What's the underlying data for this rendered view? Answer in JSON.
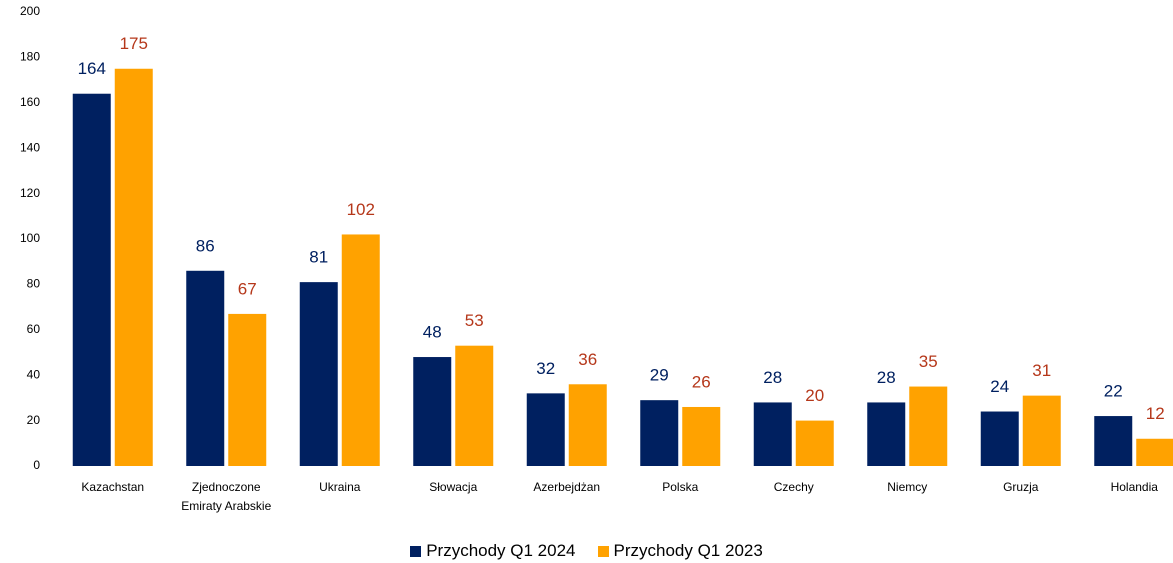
{
  "chart_data": {
    "type": "bar",
    "categories": [
      "Kazachstan",
      "Zjednoczone Emiraty Arabskie",
      "Ukraina",
      "Słowacja",
      "Azerbejdżan",
      "Polska",
      "Czechy",
      "Niemcy",
      "Gruzja",
      "Holandia"
    ],
    "series": [
      {
        "name": "Przychody Q1 2024",
        "color": "#002060",
        "label_color": "#002060",
        "values": [
          164,
          86,
          81,
          48,
          32,
          29,
          28,
          28,
          24,
          22
        ]
      },
      {
        "name": "Przychody Q1 2023",
        "color": "#FFA200",
        "label_color": "#B5371A",
        "values": [
          175,
          67,
          102,
          53,
          36,
          26,
          20,
          35,
          31,
          12
        ]
      }
    ],
    "ylim": [
      0,
      200
    ],
    "yticks": [
      0,
      20,
      40,
      60,
      80,
      100,
      120,
      140,
      160,
      180,
      200
    ],
    "grid": false,
    "legend": "bottom"
  }
}
